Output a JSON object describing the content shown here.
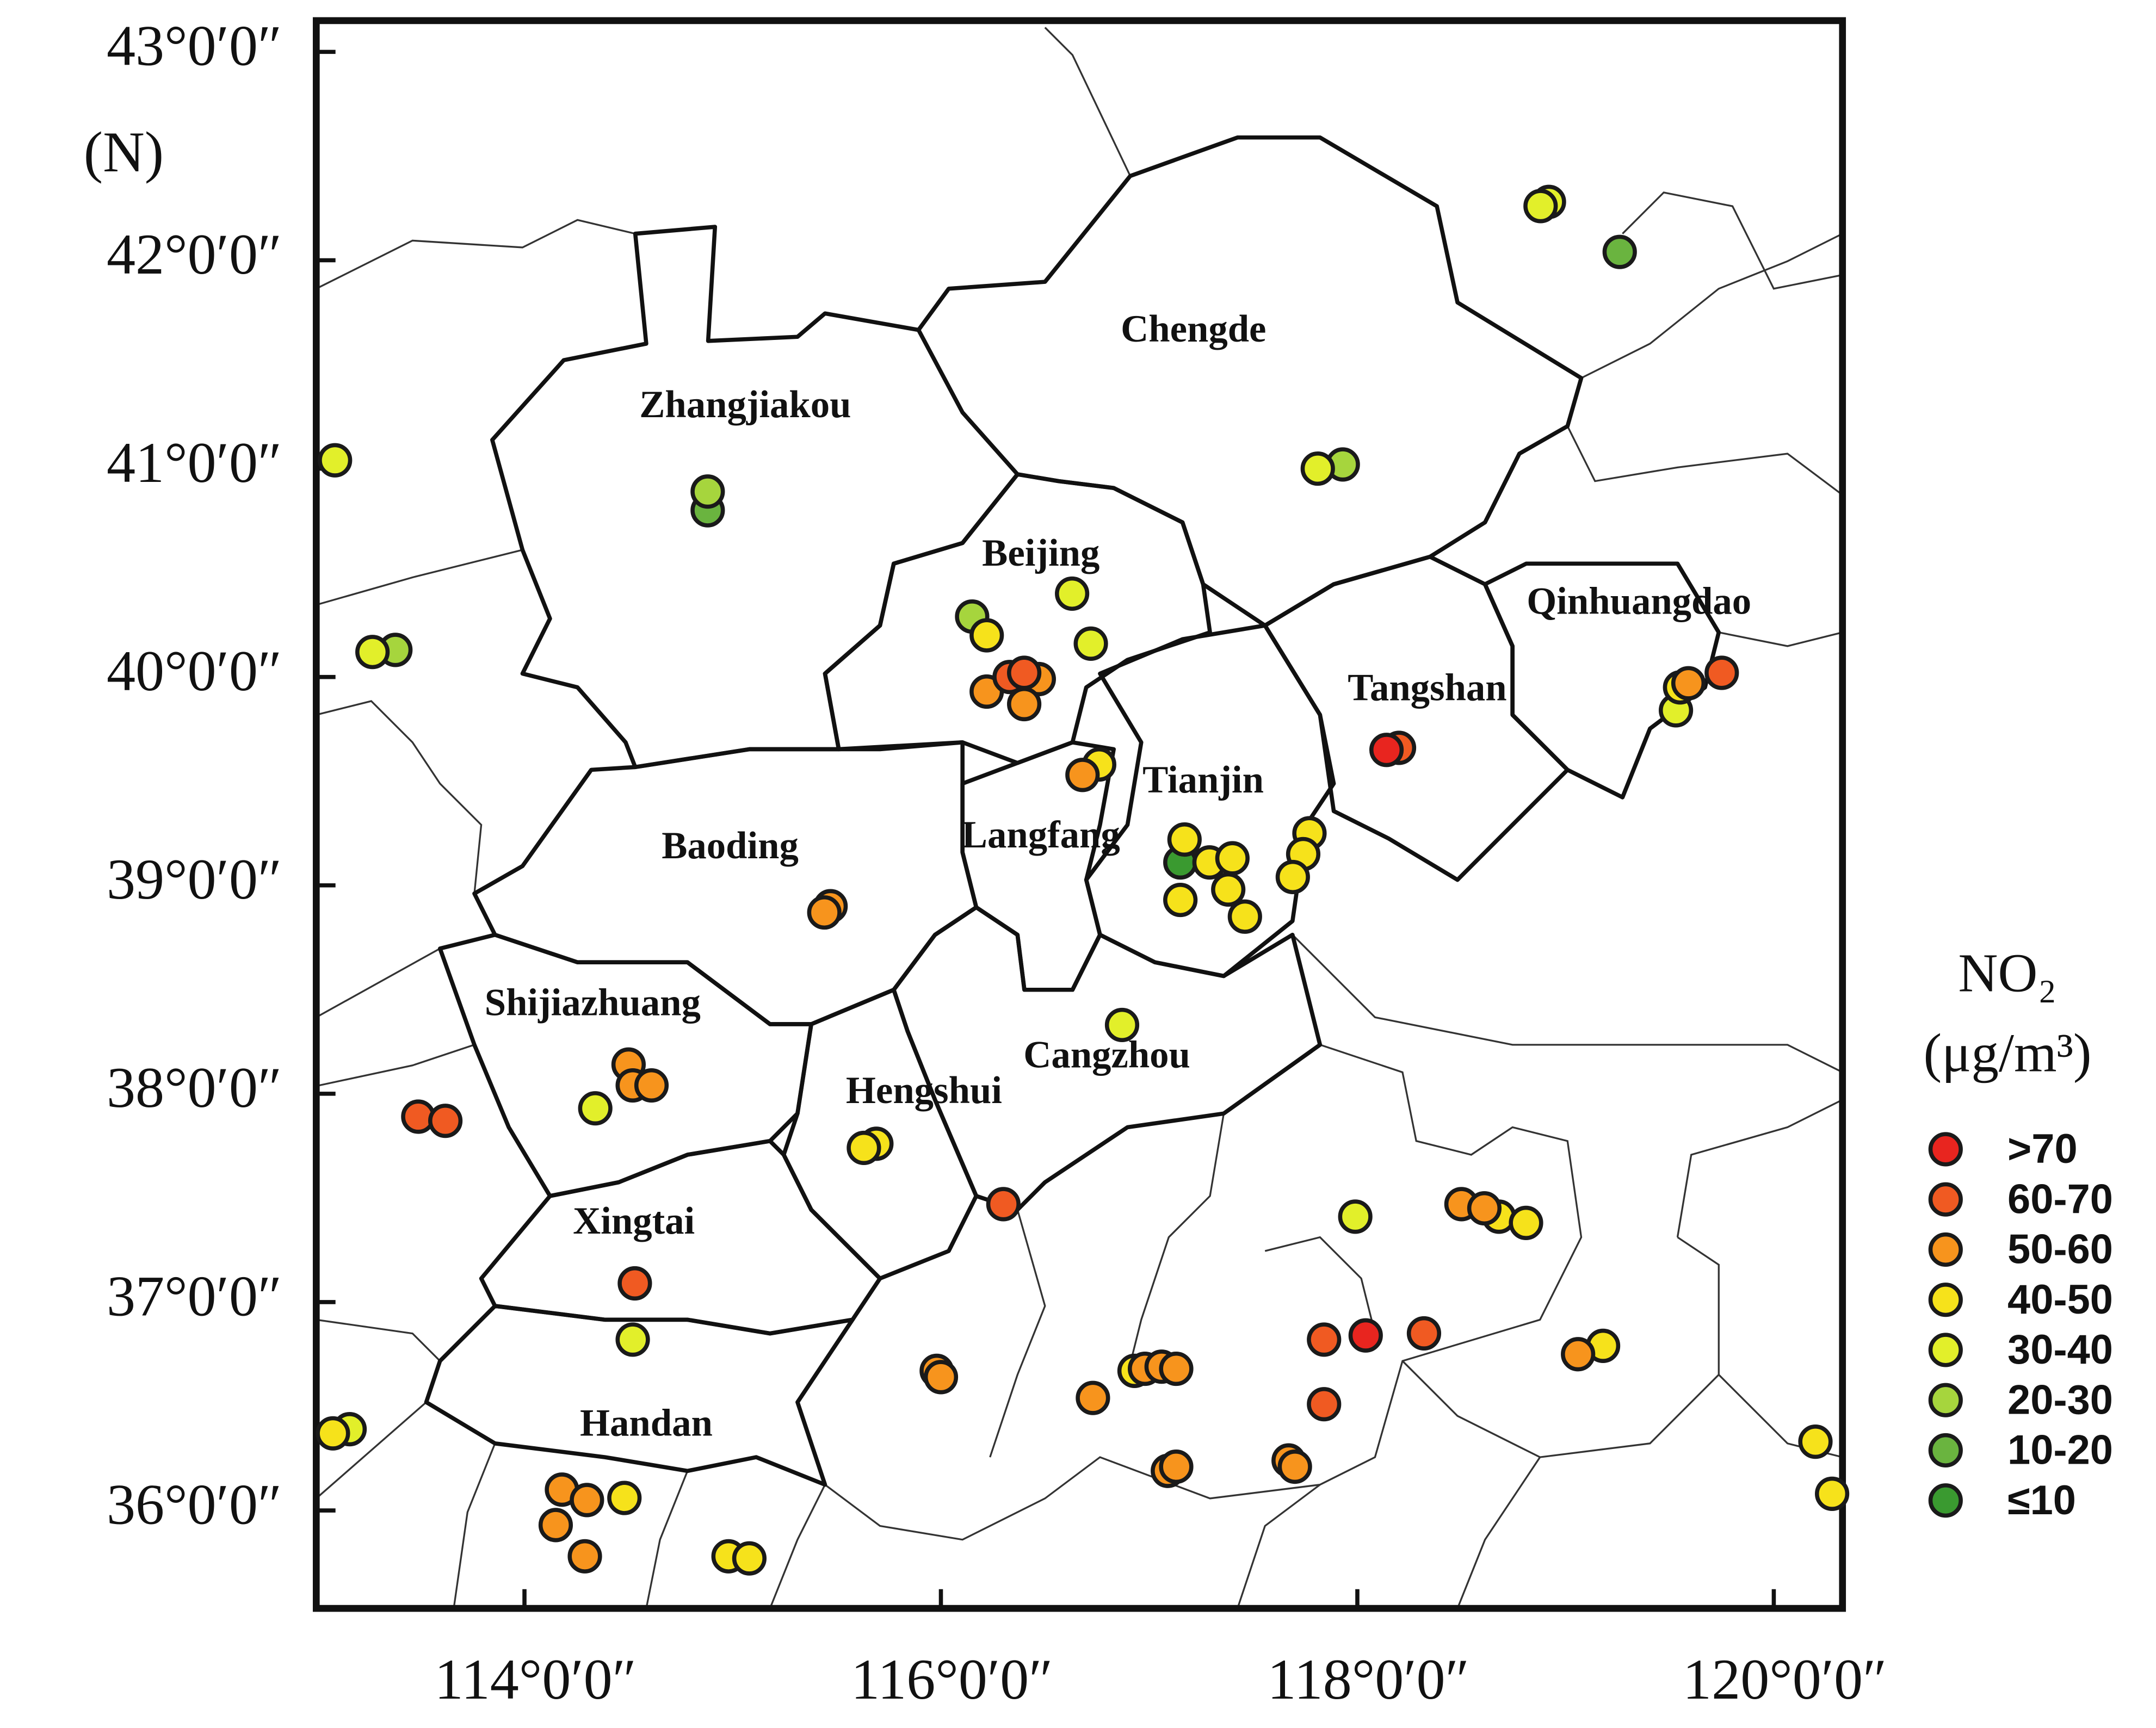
{
  "chart_data": {
    "type": "scatter",
    "xlim": [
      113.0,
      120.33
    ],
    "ylim": [
      35.53,
      43.15
    ],
    "xticks": [
      {
        "value": 114,
        "label": "114°0′0″"
      },
      {
        "value": 116,
        "label": "116°0′0″"
      },
      {
        "value": 118,
        "label": "118°0′0″"
      },
      {
        "value": 120,
        "label": "120°0′0″"
      }
    ],
    "yticks": [
      {
        "value": 36,
        "label": "36°0′0″"
      },
      {
        "value": 37,
        "label": "37°0′0″"
      },
      {
        "value": 38,
        "label": "38°0′0″"
      },
      {
        "value": 39,
        "label": "39°0′0″"
      },
      {
        "value": 40,
        "label": "40°0′0″"
      },
      {
        "value": 41,
        "label": "41°0′0″"
      },
      {
        "value": 42,
        "label": "42°0′0″"
      },
      {
        "value": 43,
        "label": "43°0′0″"
      }
    ],
    "ylabel": "(N)",
    "regions": [
      "Chengde",
      "Zhangjiakou",
      "Beijing",
      "Qinhuangdao",
      "Tangshan",
      "Tianjin",
      "Baoding",
      "Langfang",
      "Shijiazhuang",
      "Cangzhou",
      "Hengshui",
      "Xingtai",
      "Handan"
    ],
    "legend_title": "NO₂",
    "legend_unit": "(μg/m³)",
    "series": [
      {
        "name": ">70",
        "color": "#e8251f",
        "x": [
          118.14,
          118.04
        ],
        "y": [
          39.65,
          36.84
        ]
      },
      {
        "name": "60-70",
        "color": "#f05a22",
        "x": [
          116.33,
          116.4,
          118.2,
          119.75,
          113.49,
          113.62,
          116.3,
          114.53,
          117.84,
          117.84,
          118.32
        ],
        "y": [
          40.0,
          40.02,
          39.66,
          40.02,
          37.89,
          37.87,
          37.47,
          37.09,
          36.51,
          36.82,
          36.85
        ]
      },
      {
        "name": "50-60",
        "color": "#f7941d",
        "x": [
          116.22,
          116.47,
          116.4,
          116.68,
          119.59,
          115.47,
          115.44,
          114.5,
          114.52,
          114.61,
          114.18,
          114.3,
          114.15,
          114.29,
          115.98,
          116.0,
          116.73,
          116.98,
          117.06,
          117.13,
          117.09,
          117.13,
          117.67,
          117.7,
          118.5,
          118.61,
          119.06
        ],
        "y": [
          39.93,
          39.99,
          39.87,
          39.53,
          39.97,
          38.9,
          38.87,
          38.14,
          38.04,
          38.04,
          36.1,
          36.05,
          35.93,
          35.78,
          36.67,
          36.64,
          36.54,
          36.68,
          36.69,
          36.68,
          36.19,
          36.21,
          36.24,
          36.21,
          37.47,
          37.45,
          36.75
        ]
      },
      {
        "name": "40-50",
        "color": "#f6e21b",
        "x": [
          116.22,
          116.76,
          119.55,
          117.17,
          117.15,
          117.29,
          117.4,
          117.38,
          117.46,
          117.77,
          117.74,
          117.69,
          115.69,
          115.63,
          114.48,
          113.08,
          114.98,
          115.08,
          116.93,
          118.68,
          118.81,
          119.18,
          120.2,
          120.28
        ],
        "y": [
          40.2,
          39.58,
          39.95,
          39.22,
          38.93,
          39.11,
          39.13,
          38.98,
          38.85,
          39.25,
          39.15,
          39.04,
          37.76,
          37.74,
          36.06,
          36.37,
          35.78,
          35.77,
          36.67,
          37.41,
          37.38,
          36.79,
          36.33,
          36.08
        ]
      },
      {
        "name": "30-40",
        "color": "#e2ef2a",
        "x": [
          118.92,
          118.88,
          113.09,
          117.81,
          113.27,
          116.63,
          116.72,
          119.53,
          116.87,
          114.34,
          114.52,
          113.16,
          117.99
        ],
        "y": [
          42.28,
          42.26,
          41.04,
          41.0,
          40.12,
          40.4,
          40.16,
          39.84,
          38.33,
          37.93,
          36.82,
          36.39,
          37.41
        ]
      },
      {
        "name": "20-30",
        "color": "#a6d53d",
        "x": [
          114.88,
          117.93,
          113.38,
          116.15
        ],
        "y": [
          40.89,
          41.02,
          40.13,
          40.29
        ]
      },
      {
        "name": "10-20",
        "color": "#6ab43f",
        "x": [
          119.26,
          114.88
        ],
        "y": [
          42.04,
          40.8
        ]
      },
      {
        "name": "≤10",
        "color": "#3a9a30",
        "x": [
          117.15
        ],
        "y": [
          39.11
        ]
      }
    ]
  }
}
